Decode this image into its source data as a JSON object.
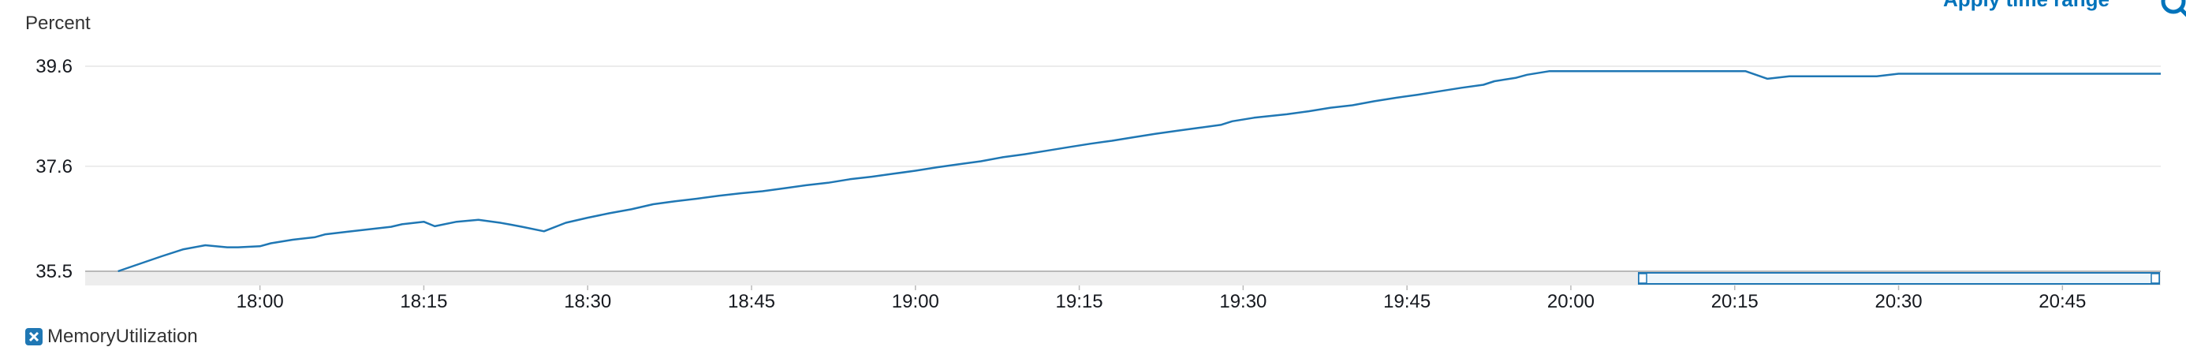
{
  "header": {
    "y_unit_label": "Percent",
    "apply_time_range_label": "Apply time range",
    "zoom_icon": "magnifier-icon"
  },
  "legend": {
    "series_label": "MemoryUtilization",
    "icon": "close-x-icon",
    "color": "#1f77b4"
  },
  "chart_data": {
    "type": "line",
    "title": "",
    "xlabel": "",
    "ylabel": "Percent",
    "xlim": [
      "17:44",
      "20:54"
    ],
    "ylim": [
      35.5,
      39.6
    ],
    "yticks": [
      "35.5",
      "37.6",
      "39.6"
    ],
    "xticks": [
      "18:00",
      "18:15",
      "18:30",
      "18:45",
      "19:00",
      "19:15",
      "19:30",
      "19:45",
      "20:00",
      "20:15",
      "20:30",
      "20:45"
    ],
    "grid": true,
    "legend_position": "bottom-left",
    "series": [
      {
        "name": "MemoryUtilization",
        "color": "#1f77b4",
        "x": [
          "17:47",
          "17:49",
          "17:51",
          "17:53",
          "17:55",
          "17:57",
          "17:58",
          "18:00",
          "18:01",
          "18:03",
          "18:05",
          "18:06",
          "18:08",
          "18:10",
          "18:12",
          "18:13",
          "18:15",
          "18:16",
          "18:18",
          "18:20",
          "18:22",
          "18:23",
          "18:24",
          "18:26",
          "18:28",
          "18:30",
          "18:32",
          "18:34",
          "18:36",
          "18:38",
          "18:40",
          "18:42",
          "18:44",
          "18:46",
          "18:48",
          "18:50",
          "18:52",
          "18:54",
          "18:56",
          "18:58",
          "19:00",
          "19:02",
          "19:04",
          "19:06",
          "19:08",
          "19:10",
          "19:12",
          "19:14",
          "19:16",
          "19:18",
          "19:20",
          "19:22",
          "19:24",
          "19:26",
          "19:28",
          "19:29",
          "19:31",
          "19:34",
          "19:36",
          "19:38",
          "19:40",
          "19:42",
          "19:44",
          "19:46",
          "19:48",
          "19:50",
          "19:52",
          "19:53",
          "19:55",
          "19:56",
          "19:58",
          "20:00",
          "20:01",
          "20:02",
          "20:03",
          "20:05",
          "20:07",
          "20:09",
          "20:11",
          "20:13",
          "20:15",
          "20:16",
          "20:18",
          "20:20",
          "20:22",
          "20:24",
          "20:26",
          "20:28",
          "20:30",
          "20:32",
          "20:34",
          "20:36",
          "20:38",
          "20:39",
          "20:40",
          "20:42",
          "20:44",
          "20:46",
          "20:48",
          "20:50",
          "20:52",
          "20:54"
        ],
        "y": [
          35.5,
          35.65,
          35.8,
          35.94,
          36.02,
          35.98,
          35.98,
          36.0,
          36.06,
          36.13,
          36.18,
          36.24,
          36.29,
          36.34,
          36.39,
          36.44,
          36.49,
          36.4,
          36.49,
          36.53,
          36.47,
          36.43,
          36.39,
          36.3,
          36.47,
          36.57,
          36.66,
          36.74,
          36.84,
          36.9,
          36.95,
          37.01,
          37.06,
          37.1,
          37.16,
          37.22,
          37.27,
          37.34,
          37.39,
          37.45,
          37.51,
          37.58,
          37.64,
          37.7,
          37.78,
          37.84,
          37.91,
          37.98,
          38.05,
          38.11,
          38.18,
          38.25,
          38.31,
          38.37,
          38.43,
          38.5,
          38.57,
          38.64,
          38.7,
          38.77,
          38.82,
          38.9,
          38.97,
          39.03,
          39.1,
          39.17,
          39.23,
          39.3,
          39.37,
          39.43,
          39.5,
          39.5,
          39.5,
          39.5,
          39.5,
          39.5,
          39.5,
          39.5,
          39.5,
          39.5,
          39.5,
          39.5,
          39.35,
          39.4,
          39.4,
          39.4,
          39.4,
          39.4,
          39.45,
          39.45,
          39.45,
          39.45,
          39.45,
          39.45,
          39.45,
          39.45,
          39.45,
          39.45,
          39.45,
          39.45,
          39.45,
          39.45
        ]
      }
    ]
  }
}
